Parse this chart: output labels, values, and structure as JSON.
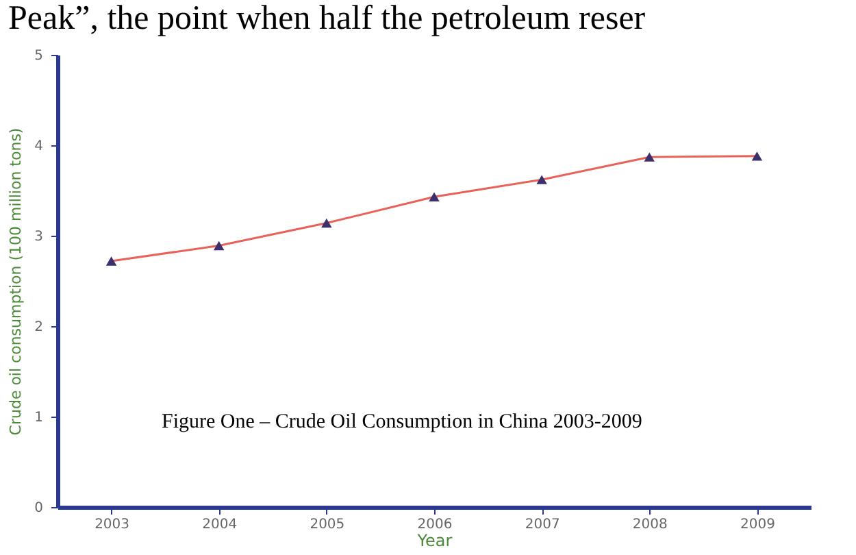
{
  "chart_data": {
    "type": "line",
    "xlabel": "Year",
    "ylabel": "Crude oil consumption (100 million tons)",
    "categories": [
      "2003",
      "2004",
      "2005",
      "2006",
      "2007",
      "2008",
      "2009"
    ],
    "series": [
      {
        "color": "#e8625a",
        "values": [
          2.72,
          2.89,
          3.14,
          3.43,
          3.62,
          3.87,
          3.88
        ]
      }
    ],
    "ylim": [
      0,
      5
    ],
    "yticks": [
      0,
      1,
      2,
      3,
      4,
      5
    ],
    "grid": false,
    "marker": "triangle",
    "line_style": "solid",
    "annotations": [
      "Peak”, the point when half the petroleum reser",
      "Figure One – Crude Oil Consumption in China 2003-2009"
    ]
  }
}
